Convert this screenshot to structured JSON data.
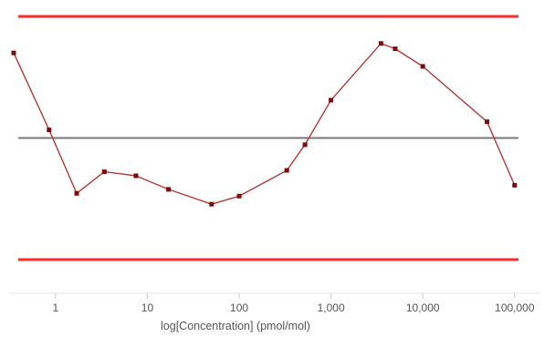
{
  "chart_data": {
    "type": "line",
    "title": "",
    "xlabel": "log[Concentration] (pmol/mol)",
    "ylabel": "",
    "x_scale": "log",
    "xlim": [
      0.35,
      110000
    ],
    "ylim": [
      -1.0,
      1.0
    ],
    "grid": false,
    "legend": "none",
    "x_ticks": [
      {
        "value": 1,
        "label": "1"
      },
      {
        "value": 10,
        "label": "10"
      },
      {
        "value": 100,
        "label": "100"
      },
      {
        "value": 1000,
        "label": "1,000"
      },
      {
        "value": 10000,
        "label": "10,000"
      },
      {
        "value": 100000,
        "label": "100,000"
      }
    ],
    "reference_lines": [
      {
        "y": 0.9,
        "color": "#ff2b2b"
      },
      {
        "y": 0.0,
        "color": "#777777"
      },
      {
        "y": -0.9,
        "color": "#ff2b2b"
      }
    ],
    "series": [
      {
        "color": "#b23a3a",
        "marker_color": "#7a0c0c",
        "x": [
          0.35,
          0.85,
          1.7,
          3.4,
          7.5,
          17,
          50,
          100,
          330,
          520,
          1000,
          3500,
          5000,
          10000,
          50000,
          100000
        ],
        "y": [
          0.63,
          0.06,
          -0.41,
          -0.25,
          -0.28,
          -0.38,
          -0.49,
          -0.43,
          -0.24,
          -0.05,
          0.28,
          0.7,
          0.66,
          0.53,
          0.12,
          -0.35
        ]
      }
    ]
  }
}
